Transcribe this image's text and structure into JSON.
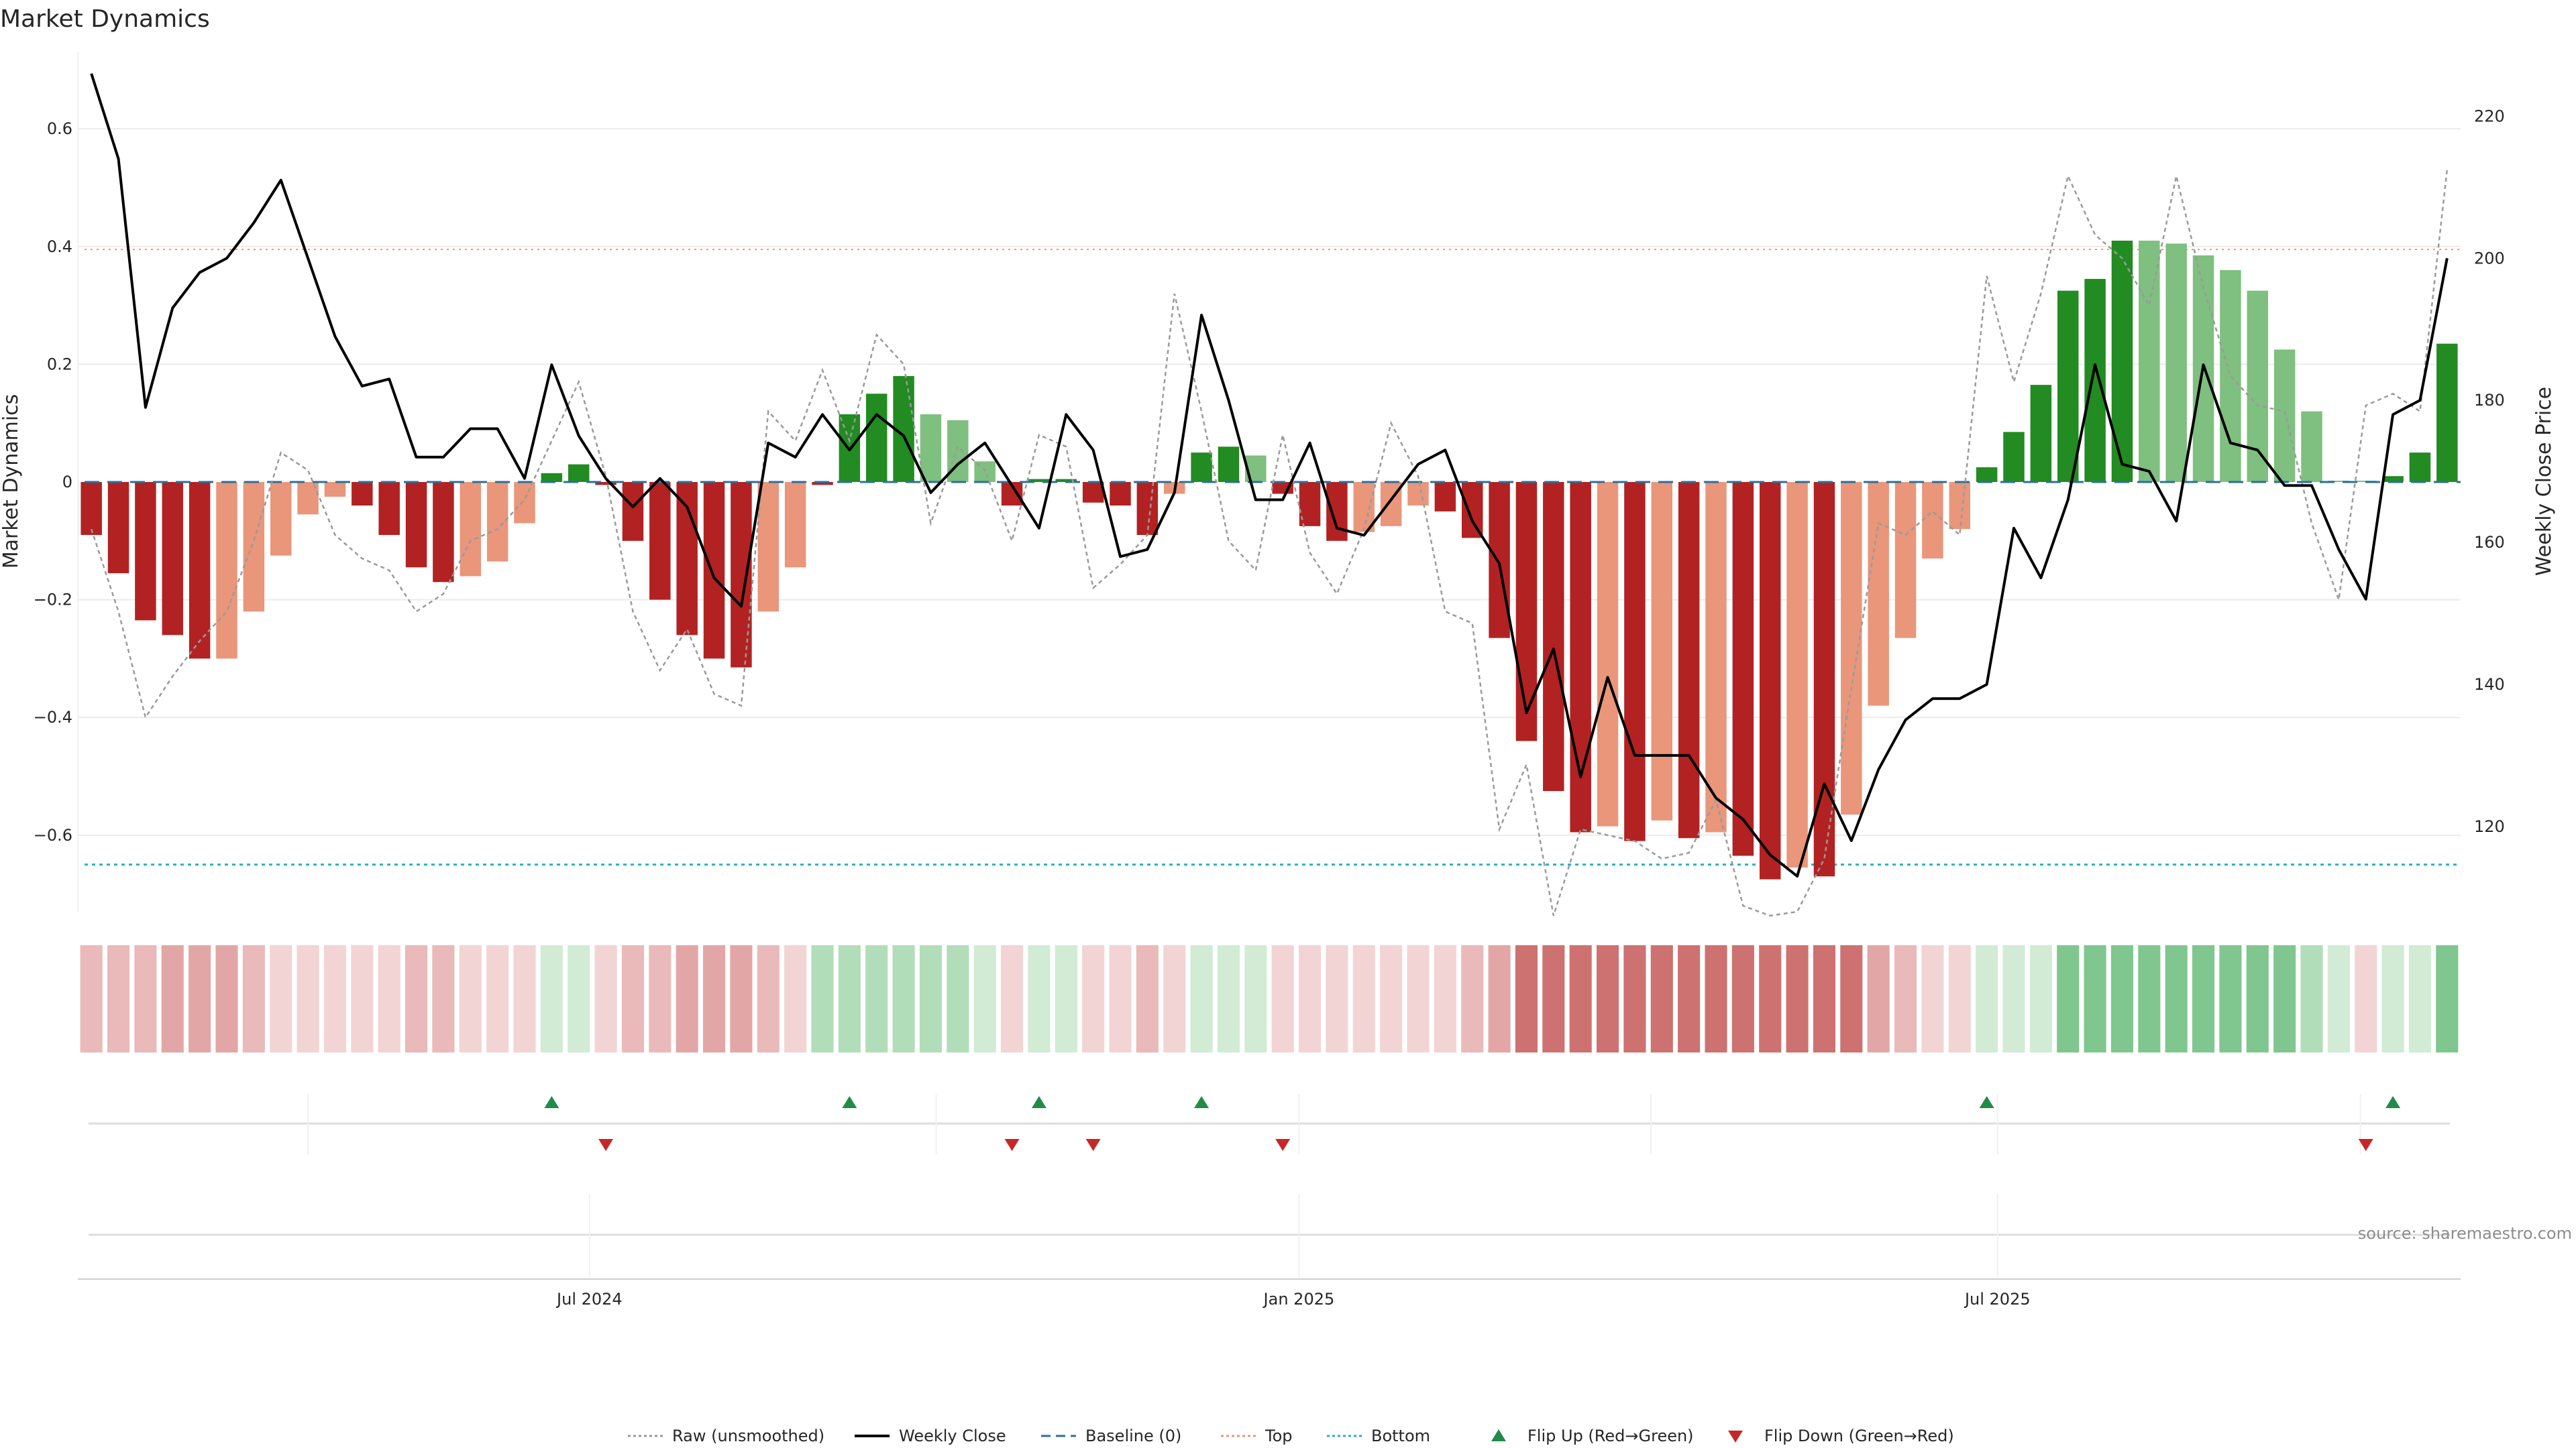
{
  "chart_data": {
    "type": "bar",
    "title": "Market Dynamics",
    "ylabel_left": "Market Dynamics",
    "ylabel_right": "Weekly Close Price",
    "source": "source: sharemaestro.com",
    "left_ylim": [
      -0.73,
      0.73
    ],
    "right_ylim": [
      108,
      229
    ],
    "left_yticks": [
      0.6,
      0.4,
      0.2,
      0,
      -0.2,
      -0.4,
      -0.6
    ],
    "left_yticklabels": [
      "0.6",
      "0.4",
      "0.2",
      "0",
      "−0.2",
      "−0.4",
      "−0.6"
    ],
    "right_yticks": [
      220,
      200,
      180,
      160,
      140,
      120
    ],
    "right_yticklabels": [
      "220",
      "200",
      "180",
      "160",
      "140",
      "120"
    ],
    "x_ticks": [
      {
        "label": "Jul 2024",
        "week": 18.4
      },
      {
        "label": "Jan 2025",
        "week": 44.6
      },
      {
        "label": "Jul 2025",
        "week": 70.4
      }
    ],
    "top_threshold": 0.395,
    "bottom_threshold": -0.65,
    "bar_colors": {
      "strong_red": "#b22222",
      "light_red": "#e9967a",
      "strong_green": "#228b22",
      "light_green": "#7fbf7f"
    },
    "weeks": 88,
    "values": [
      -0.09,
      -0.155,
      -0.235,
      -0.26,
      -0.3,
      -0.3,
      -0.22,
      -0.125,
      -0.055,
      -0.025,
      -0.04,
      -0.09,
      -0.145,
      -0.17,
      -0.16,
      -0.135,
      -0.07,
      0.015,
      0.03,
      -0.005,
      -0.1,
      -0.2,
      -0.26,
      -0.3,
      -0.315,
      -0.22,
      -0.145,
      -0.005,
      0.115,
      0.15,
      0.18,
      0.115,
      0.105,
      0.035,
      -0.04,
      0.005,
      0.005,
      -0.035,
      -0.04,
      -0.09,
      -0.02,
      0.05,
      0.06,
      0.045,
      -0.02,
      -0.075,
      -0.1,
      -0.085,
      -0.075,
      -0.04,
      -0.05,
      -0.095,
      -0.265,
      -0.44,
      -0.525,
      -0.595,
      -0.585,
      -0.61,
      -0.575,
      -0.605,
      -0.595,
      -0.635,
      -0.675,
      -0.655,
      -0.67,
      -0.565,
      -0.38,
      -0.265,
      -0.13,
      -0.08,
      0.025,
      0.085,
      0.165,
      0.325,
      0.345,
      0.41,
      0.41,
      0.405,
      0.385,
      0.36,
      0.325,
      0.225,
      0.12,
      0.0,
      0.0,
      0.01,
      0.05,
      0.235
    ],
    "bar_shade": [
      "S",
      "S",
      "S",
      "S",
      "S",
      "L",
      "L",
      "L",
      "L",
      "L",
      "S",
      "S",
      "S",
      "S",
      "L",
      "L",
      "L",
      "S",
      "S",
      "S",
      "S",
      "S",
      "S",
      "S",
      "S",
      "L",
      "L",
      "S",
      "S",
      "S",
      "S",
      "L",
      "L",
      "L",
      "S",
      "S",
      "S",
      "S",
      "S",
      "S",
      "L",
      "S",
      "S",
      "L",
      "S",
      "S",
      "S",
      "L",
      "L",
      "L",
      "S",
      "S",
      "S",
      "S",
      "S",
      "S",
      "L",
      "S",
      "L",
      "S",
      "L",
      "S",
      "S",
      "L",
      "S",
      "L",
      "L",
      "L",
      "L",
      "L",
      "S",
      "S",
      "S",
      "S",
      "S",
      "S",
      "L",
      "L",
      "L",
      "L",
      "L",
      "L",
      "L",
      "L",
      "L",
      "S",
      "S",
      "S"
    ],
    "raw": [
      -0.08,
      -0.22,
      -0.4,
      -0.33,
      -0.27,
      -0.22,
      -0.1,
      0.05,
      0.02,
      -0.09,
      -0.13,
      -0.15,
      -0.22,
      -0.19,
      -0.1,
      -0.08,
      -0.03,
      0.07,
      0.17,
      0.01,
      -0.22,
      -0.32,
      -0.25,
      -0.36,
      -0.38,
      0.12,
      0.07,
      0.19,
      0.07,
      0.25,
      0.2,
      -0.07,
      0.06,
      0.02,
      -0.1,
      0.08,
      0.06,
      -0.18,
      -0.14,
      -0.09,
      0.32,
      0.12,
      -0.1,
      -0.15,
      0.08,
      -0.12,
      -0.19,
      -0.08,
      0.1,
      0.01,
      -0.22,
      -0.24,
      -0.59,
      -0.48,
      -0.75,
      -0.59,
      -0.6,
      -0.61,
      -0.64,
      -0.63,
      -0.54,
      -0.72,
      -0.75,
      -0.73,
      -0.64,
      -0.35,
      -0.07,
      -0.09,
      -0.05,
      -0.09,
      0.35,
      0.17,
      0.32,
      0.52,
      0.42,
      0.38,
      0.3,
      0.52,
      0.33,
      0.18,
      0.13,
      0.12,
      -0.07,
      -0.2,
      0.13,
      0.15,
      0.12,
      0.53
    ],
    "close": [
      226,
      214,
      179,
      193,
      198,
      200,
      205,
      211,
      200,
      189,
      182,
      183,
      172,
      172,
      176,
      176,
      169,
      185,
      175,
      169,
      165,
      169,
      165,
      155,
      151,
      174,
      172,
      178,
      173,
      178,
      175,
      167,
      171,
      174,
      168,
      162,
      178,
      173,
      158,
      159,
      167,
      192,
      180,
      166,
      166,
      174,
      162,
      161,
      166,
      171,
      173,
      163,
      157,
      136,
      145,
      127,
      141,
      130,
      130,
      130,
      124,
      121,
      116,
      113,
      126,
      118,
      128,
      135,
      138,
      138,
      140,
      162,
      155,
      166,
      185,
      171,
      170,
      163,
      185,
      174,
      173,
      168,
      168,
      159,
      152,
      178,
      180,
      200
    ],
    "heatmap": {
      "cells": [
        "r2",
        "r2",
        "r2",
        "r3",
        "r3",
        "r3",
        "r2",
        "r1",
        "r1",
        "r1",
        "r1",
        "r1",
        "r2",
        "r2",
        "r1",
        "r1",
        "r1",
        "g1",
        "g1",
        "r1",
        "r2",
        "r2",
        "r3",
        "r3",
        "r3",
        "r2",
        "r1",
        "g2",
        "g2",
        "g2",
        "g2",
        "g2",
        "g2",
        "g1",
        "r1",
        "g1",
        "g1",
        "r1",
        "r1",
        "r2",
        "r1",
        "g1",
        "g1",
        "g1",
        "r1",
        "r1",
        "r1",
        "r1",
        "r1",
        "r1",
        "r1",
        "r2",
        "r3",
        "r4",
        "r4",
        "r4",
        "r4",
        "r4",
        "r4",
        "r4",
        "r4",
        "r4",
        "r4",
        "r4",
        "r4",
        "r4",
        "r3",
        "r2",
        "r1",
        "r1",
        "g1",
        "g1",
        "g1",
        "g3",
        "g3",
        "g3",
        "g3",
        "g3",
        "g3",
        "g3",
        "g3",
        "g3",
        "g2",
        "g1",
        "r1",
        "g1",
        "g1",
        "g3"
      ],
      "palette": {
        "r1": "#f2d4d4",
        "r2": "#eab9b9",
        "r3": "#e3a6a6",
        "r4": "#cd7270",
        "g1": "#d1ebd5",
        "g2": "#b2ddb9",
        "g3": "#80c68f"
      }
    },
    "flip_up_weeks": [
      17,
      28,
      35,
      41,
      70,
      85
    ],
    "flip_down_weeks": [
      19,
      34,
      37,
      44,
      84
    ],
    "flip_up_color": "#228b48",
    "flip_down_color": "#c62828",
    "legend": [
      {
        "label": "Raw (unsmoothed)",
        "kind": "dotted",
        "color": "#999999"
      },
      {
        "label": "Weekly Close",
        "kind": "solid",
        "color": "#000000"
      },
      {
        "label": "Baseline (0)",
        "kind": "dashed",
        "color": "#2b6f9e"
      },
      {
        "label": "Top",
        "kind": "dotted",
        "color": "#e9967a"
      },
      {
        "label": "Bottom",
        "kind": "dotted",
        "color": "#21b3c5"
      },
      {
        "label": "Flip Up (Red→Green)",
        "kind": "triangle-up",
        "color": "#228b48"
      },
      {
        "label": "Flip Down (Green→Red)",
        "kind": "triangle-down",
        "color": "#c62828"
      }
    ],
    "legend_placement": "bottom-center",
    "grid": true
  }
}
